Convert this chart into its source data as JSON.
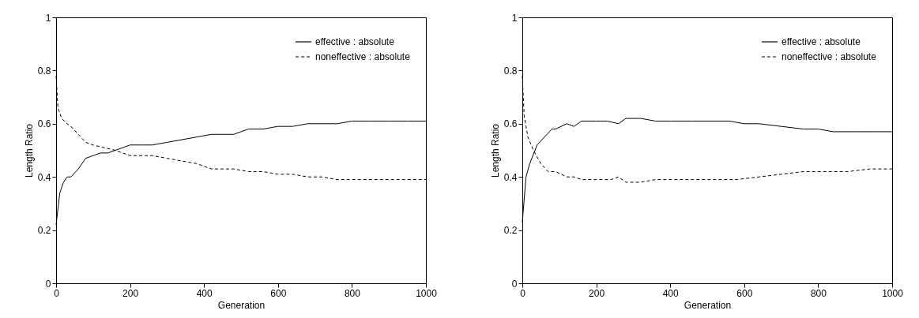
{
  "chart_data": [
    {
      "type": "line",
      "xlabel": "Generation",
      "ylabel": "Length Ratio",
      "xlim": [
        0,
        1000
      ],
      "ylim": [
        0,
        1
      ],
      "xticks": [
        0,
        200,
        400,
        600,
        800,
        1000
      ],
      "yticks": [
        0,
        0.2,
        0.4,
        0.6,
        0.8,
        1
      ],
      "legend": "top right",
      "grid": false,
      "series": [
        {
          "name": "effective : absolute",
          "color": "#000000",
          "line_style": "solid",
          "x": [
            0,
            10,
            20,
            30,
            40,
            60,
            80,
            100,
            120,
            140,
            160,
            180,
            200,
            230,
            260,
            300,
            340,
            380,
            420,
            460,
            480,
            520,
            560,
            600,
            640,
            680,
            720,
            760,
            800,
            850,
            900,
            950,
            1000
          ],
          "values": [
            0.22,
            0.34,
            0.38,
            0.4,
            0.4,
            0.43,
            0.47,
            0.48,
            0.49,
            0.49,
            0.5,
            0.51,
            0.52,
            0.52,
            0.52,
            0.53,
            0.54,
            0.55,
            0.56,
            0.56,
            0.56,
            0.58,
            0.58,
            0.59,
            0.59,
            0.6,
            0.6,
            0.6,
            0.61,
            0.61,
            0.61,
            0.61,
            0.61
          ]
        },
        {
          "name": "noneffective : absolute",
          "color": "#000000",
          "line_style": "dashed",
          "x": [
            0,
            5,
            15,
            30,
            40,
            60,
            80,
            100,
            130,
            160,
            200,
            240,
            260,
            300,
            340,
            380,
            420,
            460,
            480,
            520,
            560,
            600,
            640,
            680,
            720,
            760,
            800,
            860,
            900,
            950,
            1000
          ],
          "values": [
            0.78,
            0.66,
            0.62,
            0.6,
            0.59,
            0.56,
            0.53,
            0.52,
            0.51,
            0.5,
            0.48,
            0.48,
            0.48,
            0.47,
            0.46,
            0.45,
            0.43,
            0.43,
            0.43,
            0.42,
            0.42,
            0.41,
            0.41,
            0.4,
            0.4,
            0.39,
            0.39,
            0.39,
            0.39,
            0.39,
            0.39
          ]
        }
      ]
    },
    {
      "type": "line",
      "xlabel": "Generation",
      "ylabel": "Length Ratio",
      "xlim": [
        0,
        1000
      ],
      "ylim": [
        0,
        1
      ],
      "xticks": [
        0,
        200,
        400,
        600,
        800,
        1000
      ],
      "yticks": [
        0,
        0.2,
        0.4,
        0.6,
        0.8,
        1
      ],
      "legend": "top right",
      "grid": false,
      "series": [
        {
          "name": "effective : absolute",
          "color": "#000000",
          "line_style": "solid",
          "x": [
            0,
            10,
            20,
            40,
            60,
            80,
            90,
            120,
            140,
            160,
            200,
            230,
            260,
            280,
            320,
            360,
            400,
            460,
            500,
            560,
            600,
            640,
            700,
            760,
            800,
            840,
            900,
            960,
            1000
          ],
          "values": [
            0.23,
            0.4,
            0.45,
            0.52,
            0.55,
            0.58,
            0.58,
            0.6,
            0.59,
            0.61,
            0.61,
            0.61,
            0.6,
            0.62,
            0.62,
            0.61,
            0.61,
            0.61,
            0.61,
            0.61,
            0.6,
            0.6,
            0.59,
            0.58,
            0.58,
            0.57,
            0.57,
            0.57,
            0.57
          ]
        },
        {
          "name": "noneffective : absolute",
          "color": "#000000",
          "line_style": "dashed",
          "x": [
            0,
            5,
            15,
            30,
            50,
            70,
            90,
            120,
            140,
            160,
            200,
            240,
            260,
            280,
            320,
            360,
            400,
            460,
            520,
            580,
            640,
            700,
            760,
            820,
            880,
            940,
            1000
          ],
          "values": [
            0.78,
            0.63,
            0.55,
            0.5,
            0.45,
            0.42,
            0.42,
            0.4,
            0.4,
            0.39,
            0.39,
            0.39,
            0.4,
            0.38,
            0.38,
            0.39,
            0.39,
            0.39,
            0.39,
            0.39,
            0.4,
            0.41,
            0.42,
            0.42,
            0.42,
            0.43,
            0.43
          ]
        }
      ]
    }
  ]
}
